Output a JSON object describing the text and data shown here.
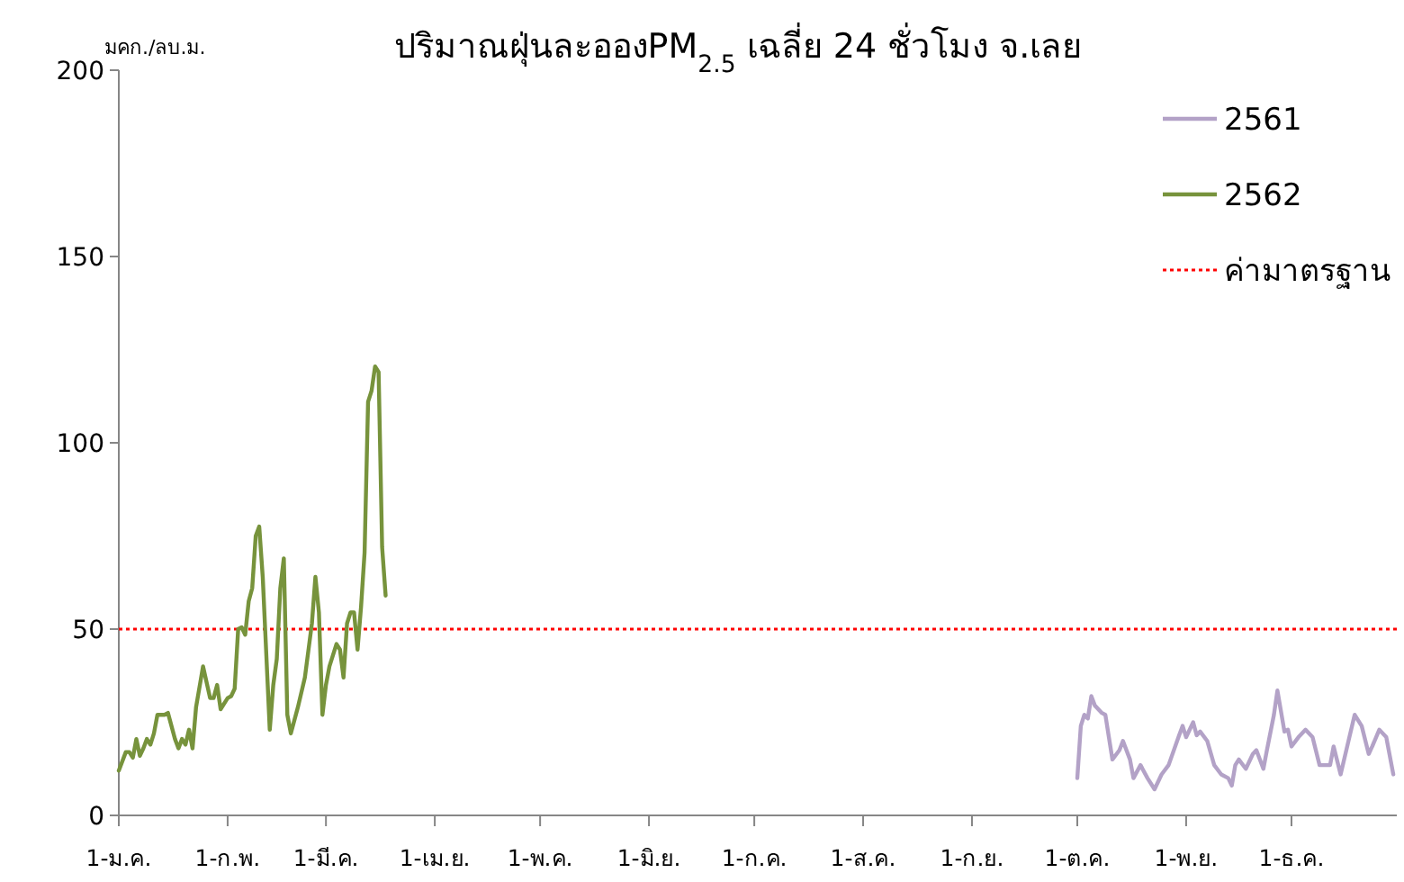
{
  "chart_data": {
    "type": "line",
    "title": "ปริมาณฝุ่นละอองPM$_{2.5}$ เฉลี่ย 24 ชั่วโมง จ.เลย",
    "ylabel": "มคก./ลบ.ม.",
    "xlim": [
      "--01-01",
      "--12-31"
    ],
    "xticks": [
      {
        "value": "--01-01",
        "label": "1-ม.ค."
      },
      {
        "value": "--02-01",
        "label": "1-ก.พ."
      },
      {
        "value": "--03-01",
        "label": "1-มี.ค."
      },
      {
        "value": "--04-01",
        "label": "1-เม.ย."
      },
      {
        "value": "--05-01",
        "label": "1-พ.ค."
      },
      {
        "value": "--06-01",
        "label": "1-มิ.ย."
      },
      {
        "value": "--07-01",
        "label": "1-ก.ค."
      },
      {
        "value": "--08-01",
        "label": "1-ส.ค."
      },
      {
        "value": "--09-01",
        "label": "1-ก.ย."
      },
      {
        "value": "--10-01",
        "label": "1-ต.ค."
      },
      {
        "value": "--11-01",
        "label": "1-พ.ย."
      },
      {
        "value": "--12-01",
        "label": "1-ธ.ค."
      }
    ],
    "ylim": [
      0,
      200
    ],
    "yticks": [
      0,
      50,
      100,
      150,
      200
    ],
    "legend": "top right",
    "series": [
      {
        "name": "2561",
        "color": "#b3a2c7",
        "x": [
          "--10-01",
          "--10-02",
          "--10-03",
          "--10-04",
          "--10-05",
          "--10-06",
          "--10-08",
          "--10-09",
          "--10-10",
          "--10-11",
          "--10-13",
          "--10-14",
          "--10-16",
          "--10-17",
          "--10-19",
          "--10-21",
          "--10-23",
          "--10-25",
          "--10-27",
          "--10-30",
          "--10-31",
          "--11-01",
          "--11-03",
          "--11-04",
          "--11-05",
          "--11-07",
          "--11-09",
          "--11-11",
          "--11-13",
          "--11-14",
          "--11-15",
          "--11-16",
          "--11-18",
          "--11-20",
          "--11-21",
          "--11-23",
          "--11-24",
          "--11-26",
          "--11-27",
          "--11-29",
          "--11-30",
          "--12-01",
          "--12-03",
          "--12-05",
          "--12-07",
          "--12-09",
          "--12-12",
          "--12-13",
          "--12-15",
          "--12-17",
          "--12-19",
          "--12-21",
          "--12-23",
          "--12-24",
          "--12-26",
          "--12-28",
          "--12-30"
        ],
        "values": [
          10,
          24,
          27,
          26,
          32,
          29.5,
          27.5,
          27,
          21,
          15,
          17.5,
          20,
          15,
          10,
          13.5,
          10,
          7,
          11,
          13.5,
          21.5,
          24,
          21,
          25,
          21.5,
          22.5,
          20,
          13.5,
          11,
          10,
          8,
          13.5,
          15,
          12.5,
          16.5,
          17.5,
          12.5,
          17.5,
          27,
          33.5,
          22.5,
          23,
          18.5,
          21,
          23,
          21,
          13.5,
          13.5,
          18.5,
          11,
          19,
          27,
          24,
          16.5,
          18.5,
          23,
          21,
          11
        ]
      },
      {
        "name": "2562",
        "color": "#77933c",
        "x": [
          "--01-01",
          "--01-03",
          "--01-04",
          "--01-05",
          "--01-06",
          "--01-07",
          "--01-08",
          "--01-09",
          "--01-10",
          "--01-11",
          "--01-12",
          "--01-14",
          "--01-15",
          "--01-17",
          "--01-18",
          "--01-19",
          "--01-20",
          "--01-21",
          "--01-22",
          "--01-23",
          "--01-25",
          "--01-27",
          "--01-28",
          "--01-29",
          "--01-30",
          "--02-01",
          "--02-02",
          "--02-03",
          "--02-04",
          "--02-05",
          "--02-06",
          "--02-07",
          "--02-08",
          "--02-09",
          "--02-10",
          "--02-11",
          "--02-13",
          "--02-14",
          "--02-15",
          "--02-16",
          "--02-17",
          "--02-18",
          "--02-19",
          "--02-21",
          "--02-23",
          "--02-25",
          "--02-26",
          "--02-27",
          "--02-28",
          "--03-01",
          "--03-02",
          "--03-04",
          "--03-05",
          "--03-06",
          "--03-07",
          "--03-08",
          "--03-09",
          "--03-10",
          "--03-11",
          "--03-12",
          "--03-13",
          "--03-14",
          "--03-15",
          "--03-16",
          "--03-17",
          "--03-18"
        ],
        "values": [
          12,
          17,
          17,
          15.5,
          20.5,
          16,
          18,
          20.5,
          19,
          22,
          27,
          27,
          27.5,
          20.5,
          18,
          20.5,
          19,
          23,
          18,
          29,
          40,
          31.5,
          31.5,
          35,
          28.5,
          31.5,
          32,
          34,
          50,
          50.5,
          48.5,
          57.5,
          61,
          75,
          77.5,
          64,
          23,
          35,
          42,
          61,
          69,
          27,
          22,
          29,
          37,
          51.5,
          64,
          54.5,
          27,
          35,
          40,
          46,
          44.5,
          37,
          51.5,
          54.5,
          54.5,
          44.5,
          56,
          70.5,
          111,
          114,
          120.5,
          119,
          72,
          59
        ]
      }
    ],
    "ref_lines": [
      {
        "axis": "y",
        "value": 50,
        "label": "ค่ามาตรฐาน",
        "color": "#ff0000",
        "line_style": "dotted"
      }
    ]
  }
}
